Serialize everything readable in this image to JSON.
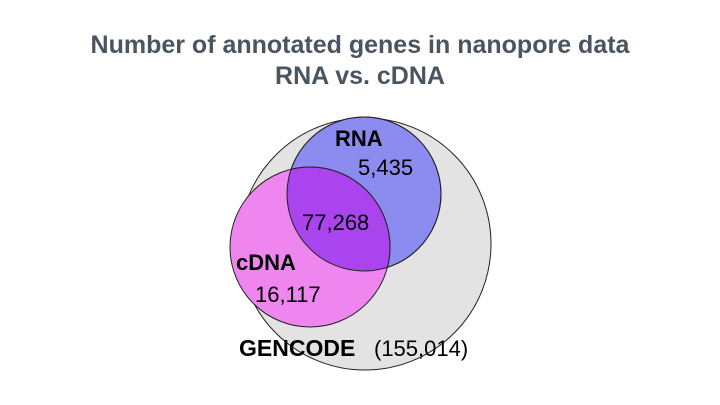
{
  "title": {
    "line1": "Number of annotated genes in nanopore data",
    "line2": "RNA vs. cDNA"
  },
  "sets": {
    "gencode": {
      "label": "GENCODE",
      "count": "(155,014)",
      "color": "#e3e3e3"
    },
    "rna": {
      "label": "RNA",
      "only_count": "5,435",
      "color": "#8b8bf0"
    },
    "cdna": {
      "label": "cDNA",
      "only_count": "16,117",
      "color": "#ef86ef"
    },
    "overlap": {
      "count": "77,268",
      "color": "#aa44ee"
    }
  }
}
